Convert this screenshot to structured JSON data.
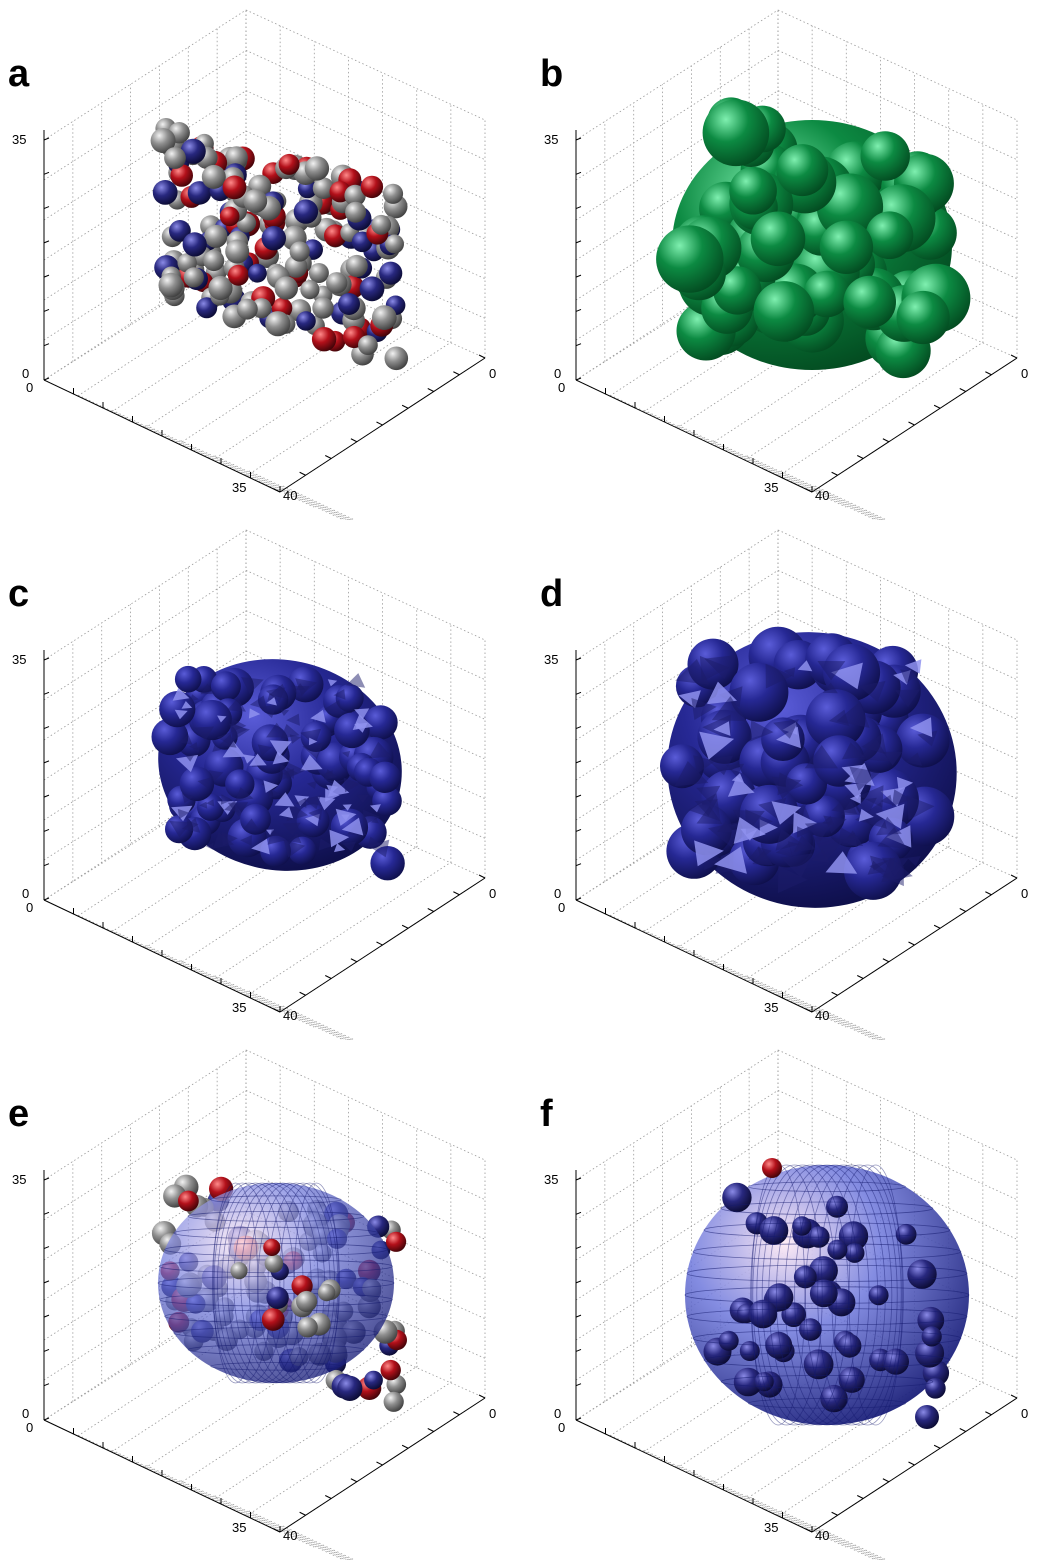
{
  "panels": [
    {
      "label": "a",
      "render": "atoms",
      "ticks": {
        "z_top": "35",
        "z_bottom": "0",
        "origin": "0",
        "x_end": "35",
        "y_end": "40",
        "y_start": "0"
      }
    },
    {
      "label": "b",
      "render": "green-surface",
      "ticks": {
        "z_top": "35",
        "z_bottom": "0",
        "origin": "0",
        "x_end": "35",
        "y_end": "40",
        "y_start": "0"
      }
    },
    {
      "label": "c",
      "render": "blue-faceted-small",
      "ticks": {
        "z_top": "35",
        "z_bottom": "0",
        "origin": "0",
        "x_end": "35",
        "y_end": "40",
        "y_start": "0"
      }
    },
    {
      "label": "d",
      "render": "blue-faceted-large",
      "ticks": {
        "z_top": "35",
        "z_bottom": "0",
        "origin": "0",
        "x_end": "35",
        "y_end": "40",
        "y_start": "0"
      }
    },
    {
      "label": "e",
      "render": "atoms-with-ellipsoid",
      "ticks": {
        "z_top": "35",
        "z_bottom": "0",
        "origin": "0",
        "x_end": "35",
        "y_end": "40",
        "y_start": "0"
      }
    },
    {
      "label": "f",
      "render": "sphere-with-atoms",
      "ticks": {
        "z_top": "35",
        "z_bottom": "0",
        "origin": "0",
        "x_end": "35",
        "y_end": "40",
        "y_start": "0"
      }
    }
  ],
  "colors": {
    "atom_gray": "#8f8f8f",
    "atom_red": "#b3101a",
    "atom_blue": "#28287f",
    "surface_green": "#0c8a42",
    "surface_blue": "#262894",
    "grid": "#9a9a9a"
  }
}
